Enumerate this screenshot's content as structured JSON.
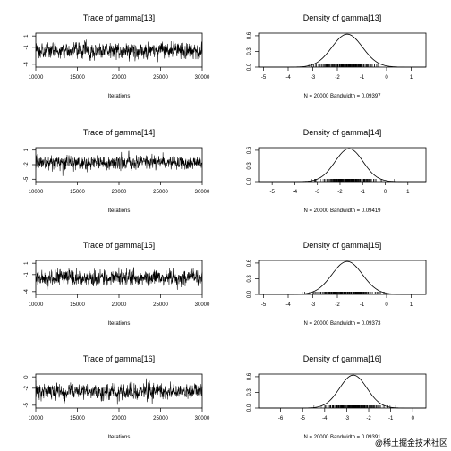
{
  "watermark": "@稀土掘金技术社区",
  "chart_data": [
    {
      "type": "line",
      "title": "Trace of gamma[13]",
      "xlabel": "Iterations",
      "ylabel": "",
      "xlim": [
        10000,
        30000
      ],
      "x_ticks": [
        10000,
        15000,
        20000,
        25000,
        30000
      ],
      "x_tick_labels": [
        "10000",
        "15000",
        "20000",
        "25000",
        "30000"
      ],
      "ylim": [
        -4.5,
        1.5
      ],
      "y_ticks": [
        -4,
        -1,
        1
      ],
      "y_tick_labels": [
        "-4",
        "-1",
        "1"
      ],
      "series": [
        {
          "center": -1.6,
          "spread": 1.2
        }
      ]
    },
    {
      "type": "line",
      "title": "Density of gamma[13]",
      "xlabel": "N = 20000   Bandwidth = 0.09397",
      "ylabel": "",
      "xlim": [
        -5.2,
        1.6
      ],
      "x_ticks": [
        -5,
        -4,
        -3,
        -2,
        -1,
        0,
        1
      ],
      "x_tick_labels": [
        "-5",
        "-4",
        "-3",
        "-2",
        "-1",
        "0",
        "1"
      ],
      "ylim": [
        0,
        0.65
      ],
      "y_ticks": [
        0,
        0.3,
        0.6
      ],
      "y_tick_labels": [
        "0.0",
        "0.3",
        "0.6"
      ],
      "series": [
        {
          "mean": -1.6,
          "sd": 0.62,
          "peak": 0.63
        }
      ]
    },
    {
      "type": "line",
      "title": "Trace of gamma[14]",
      "xlabel": "Iterations",
      "ylabel": "",
      "xlim": [
        10000,
        30000
      ],
      "x_ticks": [
        10000,
        15000,
        20000,
        25000,
        30000
      ],
      "x_tick_labels": [
        "10000",
        "15000",
        "20000",
        "25000",
        "30000"
      ],
      "ylim": [
        -5.5,
        1.5
      ],
      "y_ticks": [
        -5,
        -2,
        1
      ],
      "y_tick_labels": [
        "-5",
        "-2",
        "1"
      ],
      "series": [
        {
          "center": -1.6,
          "spread": 1.2
        }
      ]
    },
    {
      "type": "line",
      "title": "Density of gamma[14]",
      "xlabel": "N = 20000   Bandwidth = 0.09419",
      "ylabel": "",
      "xlim": [
        -5.6,
        1.8
      ],
      "x_ticks": [
        -5,
        -4,
        -3,
        -2,
        -1,
        0,
        1
      ],
      "x_tick_labels": [
        "-5",
        "-4",
        "-3",
        "-2",
        "-1",
        "0",
        "1"
      ],
      "ylim": [
        0,
        0.65
      ],
      "y_ticks": [
        0,
        0.3,
        0.6
      ],
      "y_tick_labels": [
        "0.0",
        "0.3",
        "0.6"
      ],
      "series": [
        {
          "mean": -1.6,
          "sd": 0.62,
          "peak": 0.63
        }
      ]
    },
    {
      "type": "line",
      "title": "Trace of gamma[15]",
      "xlabel": "Iterations",
      "ylabel": "",
      "xlim": [
        10000,
        30000
      ],
      "x_ticks": [
        10000,
        15000,
        20000,
        25000,
        30000
      ],
      "x_tick_labels": [
        "10000",
        "15000",
        "20000",
        "25000",
        "30000"
      ],
      "ylim": [
        -4.5,
        1.5
      ],
      "y_ticks": [
        -4,
        -1,
        1
      ],
      "y_tick_labels": [
        "-4",
        "-1",
        "1"
      ],
      "series": [
        {
          "center": -1.6,
          "spread": 1.2
        }
      ]
    },
    {
      "type": "line",
      "title": "Density of gamma[15]",
      "xlabel": "N = 20000   Bandwidth = 0.09373",
      "ylabel": "",
      "xlim": [
        -5.2,
        1.6
      ],
      "x_ticks": [
        -5,
        -4,
        -3,
        -2,
        -1,
        0,
        1
      ],
      "x_tick_labels": [
        "-5",
        "-4",
        "-3",
        "-2",
        "-1",
        "0",
        "1"
      ],
      "ylim": [
        0,
        0.65
      ],
      "y_ticks": [
        0,
        0.3,
        0.6
      ],
      "y_tick_labels": [
        "0.0",
        "0.3",
        "0.6"
      ],
      "series": [
        {
          "mean": -1.6,
          "sd": 0.62,
          "peak": 0.63
        }
      ]
    },
    {
      "type": "line",
      "title": "Trace of gamma[16]",
      "xlabel": "Iterations",
      "ylabel": "",
      "xlim": [
        10000,
        30000
      ],
      "x_ticks": [
        10000,
        15000,
        20000,
        25000,
        30000
      ],
      "x_tick_labels": [
        "10000",
        "15000",
        "20000",
        "25000",
        "30000"
      ],
      "ylim": [
        -5.5,
        0.5
      ],
      "y_ticks": [
        -5,
        -2,
        0
      ],
      "y_tick_labels": [
        "-5",
        "-2",
        "0"
      ],
      "series": [
        {
          "center": -2.6,
          "spread": 1.2
        }
      ]
    },
    {
      "type": "line",
      "title": "Density of gamma[16]",
      "xlabel": "N = 20000   Bandwidth = 0.09391",
      "ylabel": "",
      "xlim": [
        -7,
        0.6
      ],
      "x_ticks": [
        -6,
        -5,
        -4,
        -3,
        -2,
        -1,
        0
      ],
      "x_tick_labels": [
        "-6",
        "-5",
        "-4",
        "-3",
        "-2",
        "-1",
        "0"
      ],
      "ylim": [
        0,
        0.65
      ],
      "y_ticks": [
        0,
        0.3,
        0.6
      ],
      "y_tick_labels": [
        "0.0",
        "0.3",
        "0.6"
      ],
      "series": [
        {
          "mean": -2.7,
          "sd": 0.62,
          "peak": 0.63
        }
      ]
    }
  ]
}
